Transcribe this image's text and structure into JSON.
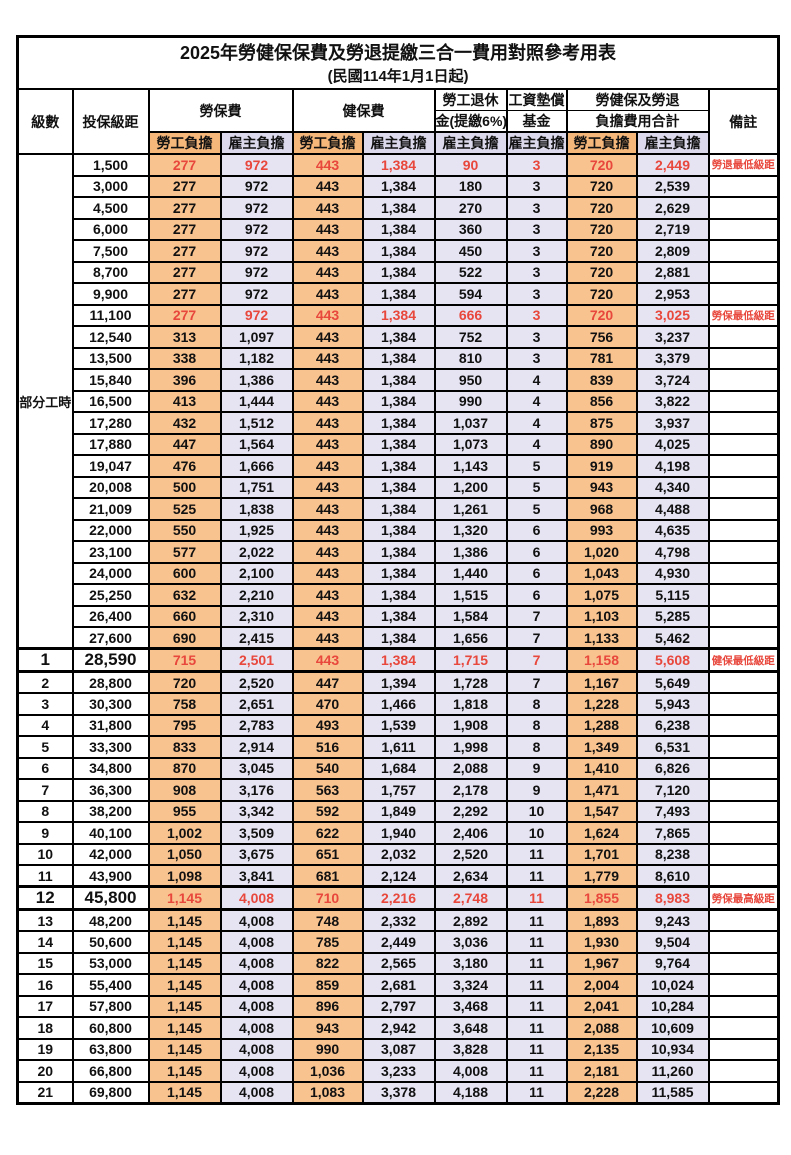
{
  "title": {
    "line1": "2025年勞健保保費及勞退提繳三合一費用對照參考用表",
    "line2": "(民國114年1月1日起)"
  },
  "colors": {
    "employee_header_bg": "#F6B77B",
    "employee_bg": "#F9C38F",
    "employer_header_bg": "#DCD9EC",
    "employer_bg": "#E6E4F3",
    "alert_red": "#E8473C",
    "border": "#000000"
  },
  "header": {
    "level": "級數",
    "bracket": "投保級距",
    "labor_ins": "勞保費",
    "health_ins": "健保費",
    "pension_line1": "勞工退休",
    "pension_line2": "金(提繳6%)",
    "wage_fund_line1": "工資墊償",
    "wage_fund_line2": "基金",
    "total_line1": "勞健保及勞退",
    "total_line2": "負擔費用合計",
    "remark": "備註",
    "employee": "勞工負擔",
    "employer": "雇主負擔"
  },
  "level_group": {
    "label": "部分工時",
    "span": 23
  },
  "rows": [
    {
      "level": "",
      "bracket": "1,500",
      "values": [
        "277",
        "972",
        "443",
        "1,384",
        "90",
        "3",
        "720",
        "2,449"
      ],
      "remark": "勞退最低級距",
      "red": true,
      "emph": false
    },
    {
      "level": "",
      "bracket": "3,000",
      "values": [
        "277",
        "972",
        "443",
        "1,384",
        "180",
        "3",
        "720",
        "2,539"
      ],
      "remark": "",
      "red": false,
      "emph": false
    },
    {
      "level": "",
      "bracket": "4,500",
      "values": [
        "277",
        "972",
        "443",
        "1,384",
        "270",
        "3",
        "720",
        "2,629"
      ],
      "remark": "",
      "red": false,
      "emph": false
    },
    {
      "level": "",
      "bracket": "6,000",
      "values": [
        "277",
        "972",
        "443",
        "1,384",
        "360",
        "3",
        "720",
        "2,719"
      ],
      "remark": "",
      "red": false,
      "emph": false
    },
    {
      "level": "",
      "bracket": "7,500",
      "values": [
        "277",
        "972",
        "443",
        "1,384",
        "450",
        "3",
        "720",
        "2,809"
      ],
      "remark": "",
      "red": false,
      "emph": false
    },
    {
      "level": "",
      "bracket": "8,700",
      "values": [
        "277",
        "972",
        "443",
        "1,384",
        "522",
        "3",
        "720",
        "2,881"
      ],
      "remark": "",
      "red": false,
      "emph": false
    },
    {
      "level": "",
      "bracket": "9,900",
      "values": [
        "277",
        "972",
        "443",
        "1,384",
        "594",
        "3",
        "720",
        "2,953"
      ],
      "remark": "",
      "red": false,
      "emph": false
    },
    {
      "level": "",
      "bracket": "11,100",
      "values": [
        "277",
        "972",
        "443",
        "1,384",
        "666",
        "3",
        "720",
        "3,025"
      ],
      "remark": "勞保最低級距",
      "red": true,
      "emph": false
    },
    {
      "level": "",
      "bracket": "12,540",
      "values": [
        "313",
        "1,097",
        "443",
        "1,384",
        "752",
        "3",
        "756",
        "3,237"
      ],
      "remark": "",
      "red": false,
      "emph": false
    },
    {
      "level": "",
      "bracket": "13,500",
      "values": [
        "338",
        "1,182",
        "443",
        "1,384",
        "810",
        "3",
        "781",
        "3,379"
      ],
      "remark": "",
      "red": false,
      "emph": false
    },
    {
      "level": "",
      "bracket": "15,840",
      "values": [
        "396",
        "1,386",
        "443",
        "1,384",
        "950",
        "4",
        "839",
        "3,724"
      ],
      "remark": "",
      "red": false,
      "emph": false
    },
    {
      "level": "",
      "bracket": "16,500",
      "values": [
        "413",
        "1,444",
        "443",
        "1,384",
        "990",
        "4",
        "856",
        "3,822"
      ],
      "remark": "",
      "red": false,
      "emph": false
    },
    {
      "level": "",
      "bracket": "17,280",
      "values": [
        "432",
        "1,512",
        "443",
        "1,384",
        "1,037",
        "4",
        "875",
        "3,937"
      ],
      "remark": "",
      "red": false,
      "emph": false
    },
    {
      "level": "",
      "bracket": "17,880",
      "values": [
        "447",
        "1,564",
        "443",
        "1,384",
        "1,073",
        "4",
        "890",
        "4,025"
      ],
      "remark": "",
      "red": false,
      "emph": false
    },
    {
      "level": "",
      "bracket": "19,047",
      "values": [
        "476",
        "1,666",
        "443",
        "1,384",
        "1,143",
        "5",
        "919",
        "4,198"
      ],
      "remark": "",
      "red": false,
      "emph": false
    },
    {
      "level": "",
      "bracket": "20,008",
      "values": [
        "500",
        "1,751",
        "443",
        "1,384",
        "1,200",
        "5",
        "943",
        "4,340"
      ],
      "remark": "",
      "red": false,
      "emph": false
    },
    {
      "level": "",
      "bracket": "21,009",
      "values": [
        "525",
        "1,838",
        "443",
        "1,384",
        "1,261",
        "5",
        "968",
        "4,488"
      ],
      "remark": "",
      "red": false,
      "emph": false
    },
    {
      "level": "",
      "bracket": "22,000",
      "values": [
        "550",
        "1,925",
        "443",
        "1,384",
        "1,320",
        "6",
        "993",
        "4,635"
      ],
      "remark": "",
      "red": false,
      "emph": false
    },
    {
      "level": "",
      "bracket": "23,100",
      "values": [
        "577",
        "2,022",
        "443",
        "1,384",
        "1,386",
        "6",
        "1,020",
        "4,798"
      ],
      "remark": "",
      "red": false,
      "emph": false
    },
    {
      "level": "",
      "bracket": "24,000",
      "values": [
        "600",
        "2,100",
        "443",
        "1,384",
        "1,440",
        "6",
        "1,043",
        "4,930"
      ],
      "remark": "",
      "red": false,
      "emph": false
    },
    {
      "level": "",
      "bracket": "25,250",
      "values": [
        "632",
        "2,210",
        "443",
        "1,384",
        "1,515",
        "6",
        "1,075",
        "5,115"
      ],
      "remark": "",
      "red": false,
      "emph": false
    },
    {
      "level": "",
      "bracket": "26,400",
      "values": [
        "660",
        "2,310",
        "443",
        "1,384",
        "1,584",
        "7",
        "1,103",
        "5,285"
      ],
      "remark": "",
      "red": false,
      "emph": false
    },
    {
      "level": "",
      "bracket": "27,600",
      "values": [
        "690",
        "2,415",
        "443",
        "1,384",
        "1,656",
        "7",
        "1,133",
        "5,462"
      ],
      "remark": "",
      "red": false,
      "emph": false
    },
    {
      "level": "1",
      "bracket": "28,590",
      "values": [
        "715",
        "2,501",
        "443",
        "1,384",
        "1,715",
        "7",
        "1,158",
        "5,608"
      ],
      "remark": "健保最低級距",
      "red": true,
      "emph": true
    },
    {
      "level": "2",
      "bracket": "28,800",
      "values": [
        "720",
        "2,520",
        "447",
        "1,394",
        "1,728",
        "7",
        "1,167",
        "5,649"
      ],
      "remark": "",
      "red": false,
      "emph": false
    },
    {
      "level": "3",
      "bracket": "30,300",
      "values": [
        "758",
        "2,651",
        "470",
        "1,466",
        "1,818",
        "8",
        "1,228",
        "5,943"
      ],
      "remark": "",
      "red": false,
      "emph": false
    },
    {
      "level": "4",
      "bracket": "31,800",
      "values": [
        "795",
        "2,783",
        "493",
        "1,539",
        "1,908",
        "8",
        "1,288",
        "6,238"
      ],
      "remark": "",
      "red": false,
      "emph": false
    },
    {
      "level": "5",
      "bracket": "33,300",
      "values": [
        "833",
        "2,914",
        "516",
        "1,611",
        "1,998",
        "8",
        "1,349",
        "6,531"
      ],
      "remark": "",
      "red": false,
      "emph": false
    },
    {
      "level": "6",
      "bracket": "34,800",
      "values": [
        "870",
        "3,045",
        "540",
        "1,684",
        "2,088",
        "9",
        "1,410",
        "6,826"
      ],
      "remark": "",
      "red": false,
      "emph": false
    },
    {
      "level": "7",
      "bracket": "36,300",
      "values": [
        "908",
        "3,176",
        "563",
        "1,757",
        "2,178",
        "9",
        "1,471",
        "7,120"
      ],
      "remark": "",
      "red": false,
      "emph": false
    },
    {
      "level": "8",
      "bracket": "38,200",
      "values": [
        "955",
        "3,342",
        "592",
        "1,849",
        "2,292",
        "10",
        "1,547",
        "7,493"
      ],
      "remark": "",
      "red": false,
      "emph": false
    },
    {
      "level": "9",
      "bracket": "40,100",
      "values": [
        "1,002",
        "3,509",
        "622",
        "1,940",
        "2,406",
        "10",
        "1,624",
        "7,865"
      ],
      "remark": "",
      "red": false,
      "emph": false
    },
    {
      "level": "10",
      "bracket": "42,000",
      "values": [
        "1,050",
        "3,675",
        "651",
        "2,032",
        "2,520",
        "11",
        "1,701",
        "8,238"
      ],
      "remark": "",
      "red": false,
      "emph": false
    },
    {
      "level": "11",
      "bracket": "43,900",
      "values": [
        "1,098",
        "3,841",
        "681",
        "2,124",
        "2,634",
        "11",
        "1,779",
        "8,610"
      ],
      "remark": "",
      "red": false,
      "emph": false
    },
    {
      "level": "12",
      "bracket": "45,800",
      "values": [
        "1,145",
        "4,008",
        "710",
        "2,216",
        "2,748",
        "11",
        "1,855",
        "8,983"
      ],
      "remark": "勞保最高級距",
      "red": true,
      "emph": true
    },
    {
      "level": "13",
      "bracket": "48,200",
      "values": [
        "1,145",
        "4,008",
        "748",
        "2,332",
        "2,892",
        "11",
        "1,893",
        "9,243"
      ],
      "remark": "",
      "red": false,
      "emph": false
    },
    {
      "level": "14",
      "bracket": "50,600",
      "values": [
        "1,145",
        "4,008",
        "785",
        "2,449",
        "3,036",
        "11",
        "1,930",
        "9,504"
      ],
      "remark": "",
      "red": false,
      "emph": false
    },
    {
      "level": "15",
      "bracket": "53,000",
      "values": [
        "1,145",
        "4,008",
        "822",
        "2,565",
        "3,180",
        "11",
        "1,967",
        "9,764"
      ],
      "remark": "",
      "red": false,
      "emph": false
    },
    {
      "level": "16",
      "bracket": "55,400",
      "values": [
        "1,145",
        "4,008",
        "859",
        "2,681",
        "3,324",
        "11",
        "2,004",
        "10,024"
      ],
      "remark": "",
      "red": false,
      "emph": false
    },
    {
      "level": "17",
      "bracket": "57,800",
      "values": [
        "1,145",
        "4,008",
        "896",
        "2,797",
        "3,468",
        "11",
        "2,041",
        "10,284"
      ],
      "remark": "",
      "red": false,
      "emph": false
    },
    {
      "level": "18",
      "bracket": "60,800",
      "values": [
        "1,145",
        "4,008",
        "943",
        "2,942",
        "3,648",
        "11",
        "2,088",
        "10,609"
      ],
      "remark": "",
      "red": false,
      "emph": false
    },
    {
      "level": "19",
      "bracket": "63,800",
      "values": [
        "1,145",
        "4,008",
        "990",
        "3,087",
        "3,828",
        "11",
        "2,135",
        "10,934"
      ],
      "remark": "",
      "red": false,
      "emph": false
    },
    {
      "level": "20",
      "bracket": "66,800",
      "values": [
        "1,145",
        "4,008",
        "1,036",
        "3,233",
        "4,008",
        "11",
        "2,181",
        "11,260"
      ],
      "remark": "",
      "red": false,
      "emph": false
    },
    {
      "level": "21",
      "bracket": "69,800",
      "values": [
        "1,145",
        "4,008",
        "1,083",
        "3,378",
        "4,188",
        "11",
        "2,228",
        "11,585"
      ],
      "remark": "",
      "red": false,
      "emph": false
    }
  ]
}
